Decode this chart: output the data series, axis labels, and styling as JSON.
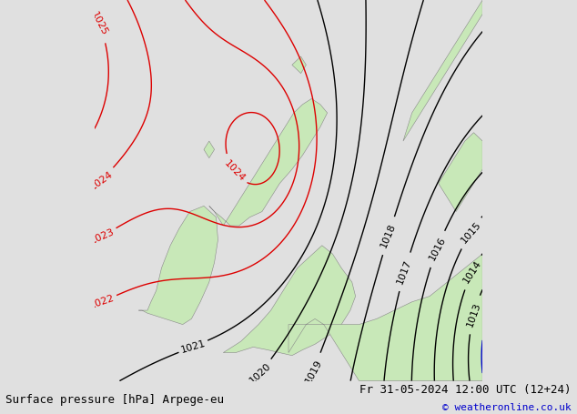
{
  "title_left": "Surface pressure [hPa] Arpege-eu",
  "title_right": "Fr 31-05-2024 12:00 UTC (12+24)",
  "copyright": "© weatheronline.co.uk",
  "bg_color": "#e0e0e0",
  "land_color": "#c8e8b8",
  "land_edge_color": "#888888",
  "isobar_color_red": "#dd0000",
  "isobar_color_black": "#000000",
  "isobar_color_blue": "#0000cc",
  "label_fontsize": 8,
  "footer_fontsize": 9,
  "footer_color": "#000000",
  "copyright_color": "#0000cc"
}
